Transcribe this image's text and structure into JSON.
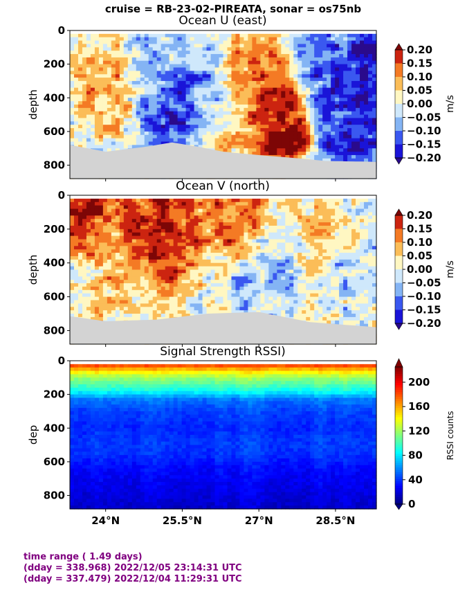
{
  "figure": {
    "suptitle": "cruise = RB-23-02-PIREATA,  sonar = os75nb",
    "footer": {
      "line1": "time range ( 1.49 days)",
      "line2": "(dday = 338.968) 2022/12/05 23:14:31 UTC",
      "line3": "(dday = 337.479) 2022/12/04 11:29:31 UTC"
    }
  },
  "chart_data": [
    {
      "type": "heatmap",
      "title": "Ocean U (east)",
      "ylabel": "depth",
      "xlabel": "",
      "x_ticks": [
        "24°N",
        "25.5°N",
        "27°N",
        "28.5°N"
      ],
      "x_tick_values": [
        24.0,
        25.5,
        27.0,
        28.5
      ],
      "xlim": [
        23.3,
        29.3
      ],
      "y_ticks": [
        "0",
        "200",
        "400",
        "600",
        "800"
      ],
      "y_tick_values": [
        0,
        200,
        400,
        600,
        800
      ],
      "ylim": [
        880,
        0
      ],
      "colorbar": {
        "label": "m/s",
        "ticks": [
          "0.20",
          "0.15",
          "0.10",
          "0.05",
          "0.00",
          "−0.05",
          "−0.10",
          "−0.15",
          "−0.20"
        ],
        "levels": [
          -0.2,
          -0.15,
          -0.1,
          -0.05,
          0.0,
          0.05,
          0.1,
          0.15,
          0.2
        ],
        "colors": [
          "#1a14d8",
          "#3a58f0",
          "#84b4f4",
          "#cfe8fb",
          "#fff7c2",
          "#fbbd58",
          "#f47a24",
          "#cc2410"
        ],
        "extend": "both"
      },
      "bottom_depth": [
        {
          "lat": 23.3,
          "depth": 680
        },
        {
          "lat": 24.0,
          "depth": 720
        },
        {
          "lat": 24.8,
          "depth": 690
        },
        {
          "lat": 25.3,
          "depth": 665
        },
        {
          "lat": 25.8,
          "depth": 690
        },
        {
          "lat": 26.3,
          "depth": 720
        },
        {
          "lat": 27.0,
          "depth": 740
        },
        {
          "lat": 27.8,
          "depth": 760
        },
        {
          "lat": 28.3,
          "depth": 775
        },
        {
          "lat": 29.3,
          "depth": 780
        }
      ],
      "features": [
        {
          "lat": 24.0,
          "depth": 300,
          "value": 0.1
        },
        {
          "lat": 24.9,
          "depth": 200,
          "value": -0.05
        },
        {
          "lat": 25.4,
          "depth": 420,
          "value": -0.18
        },
        {
          "lat": 26.0,
          "depth": 450,
          "value": -0.08
        },
        {
          "lat": 26.4,
          "depth": 600,
          "value": 0.08
        },
        {
          "lat": 27.0,
          "depth": 300,
          "value": 0.15
        },
        {
          "lat": 27.4,
          "depth": 550,
          "value": 0.22
        },
        {
          "lat": 28.4,
          "depth": 250,
          "value": -0.14
        },
        {
          "lat": 29.1,
          "depth": 300,
          "value": -0.22
        },
        {
          "lat": 28.8,
          "depth": 600,
          "value": -0.18
        }
      ]
    },
    {
      "type": "heatmap",
      "title": "Ocean V (north)",
      "ylabel": "depth",
      "xlabel": "",
      "x_ticks": [
        "24°N",
        "25.5°N",
        "27°N",
        "28.5°N"
      ],
      "x_tick_values": [
        24.0,
        25.5,
        27.0,
        28.5
      ],
      "xlim": [
        23.3,
        29.3
      ],
      "y_ticks": [
        "0",
        "200",
        "400",
        "600",
        "800"
      ],
      "y_tick_values": [
        0,
        200,
        400,
        600,
        800
      ],
      "ylim": [
        880,
        0
      ],
      "colorbar": {
        "label": "m/s",
        "ticks": [
          "0.20",
          "0.15",
          "0.10",
          "0.05",
          "0.00",
          "−0.05",
          "−0.10",
          "−0.15",
          "−0.20"
        ],
        "levels": [
          -0.2,
          -0.15,
          -0.1,
          -0.05,
          0.0,
          0.05,
          0.1,
          0.15,
          0.2
        ],
        "colors": [
          "#1a14d8",
          "#3a58f0",
          "#84b4f4",
          "#cfe8fb",
          "#fff7c2",
          "#fbbd58",
          "#f47a24",
          "#cc2410"
        ],
        "extend": "both"
      },
      "bottom_depth": [
        {
          "lat": 23.3,
          "depth": 715
        },
        {
          "lat": 24.0,
          "depth": 745
        },
        {
          "lat": 25.0,
          "depth": 735
        },
        {
          "lat": 26.0,
          "depth": 700
        },
        {
          "lat": 27.0,
          "depth": 690
        },
        {
          "lat": 28.0,
          "depth": 750
        },
        {
          "lat": 29.3,
          "depth": 780
        }
      ],
      "features": [
        {
          "lat": 23.5,
          "depth": 40,
          "value": 0.22
        },
        {
          "lat": 25.0,
          "depth": 150,
          "value": 0.2
        },
        {
          "lat": 25.2,
          "depth": 300,
          "value": 0.16
        },
        {
          "lat": 24.2,
          "depth": 450,
          "value": 0.08
        },
        {
          "lat": 26.6,
          "depth": 100,
          "value": 0.15
        },
        {
          "lat": 27.4,
          "depth": 350,
          "value": -0.05
        },
        {
          "lat": 28.1,
          "depth": 250,
          "value": 0.06
        },
        {
          "lat": 27.0,
          "depth": 600,
          "value": -0.06
        },
        {
          "lat": 28.8,
          "depth": 500,
          "value": -0.03
        }
      ]
    },
    {
      "type": "heatmap",
      "title": "Signal Strength RSSI)",
      "ylabel": "dep",
      "xlabel": "",
      "x_ticks": [
        "24°N",
        "25.5°N",
        "27°N",
        "28.5°N"
      ],
      "x_tick_values": [
        24.0,
        25.5,
        27.0,
        28.5
      ],
      "xlim": [
        23.3,
        29.3
      ],
      "y_ticks": [
        "0",
        "200",
        "400",
        "600",
        "800"
      ],
      "y_tick_values": [
        0,
        200,
        400,
        600,
        800
      ],
      "ylim": [
        880,
        0
      ],
      "colorbar": {
        "label": "RSSI counts",
        "ticks": [
          "200",
          "160",
          "120",
          "80",
          "40",
          "0"
        ],
        "range": [
          0,
          225
        ],
        "extend": "both"
      },
      "profile": [
        {
          "depth": 20,
          "value": 190
        },
        {
          "depth": 60,
          "value": 150
        },
        {
          "depth": 100,
          "value": 120
        },
        {
          "depth": 140,
          "value": 105
        },
        {
          "depth": 180,
          "value": 88
        },
        {
          "depth": 230,
          "value": 55
        },
        {
          "depth": 300,
          "value": 44
        },
        {
          "depth": 400,
          "value": 38
        },
        {
          "depth": 480,
          "value": 42
        },
        {
          "depth": 550,
          "value": 40
        },
        {
          "depth": 650,
          "value": 30
        },
        {
          "depth": 800,
          "value": 22
        },
        {
          "depth": 880,
          "value": 18
        }
      ]
    }
  ]
}
